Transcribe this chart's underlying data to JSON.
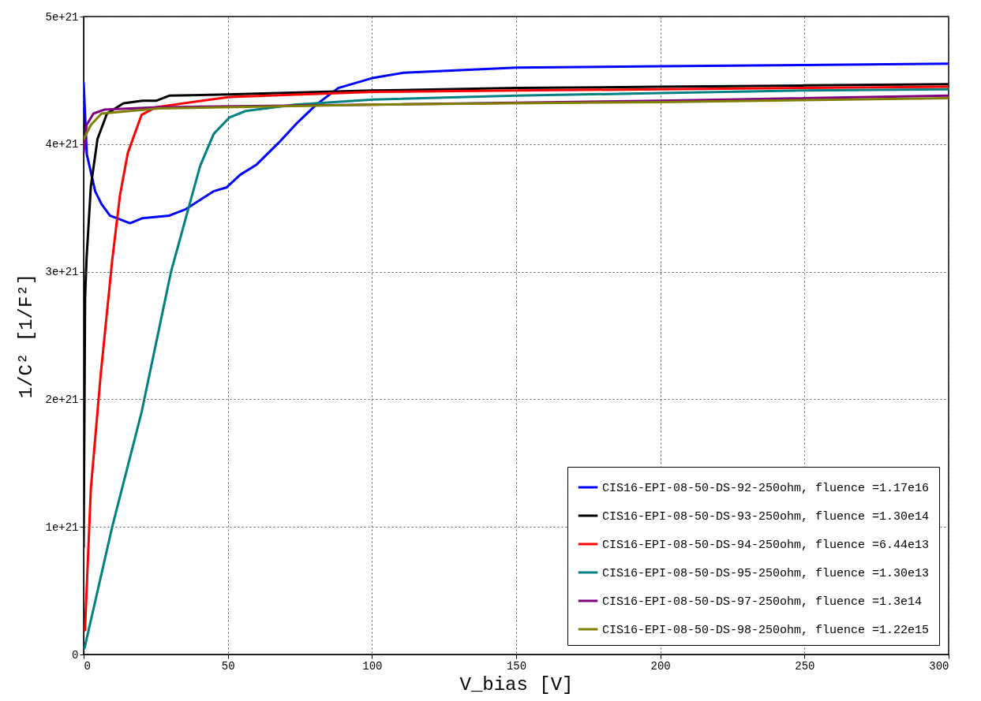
{
  "chart_data": {
    "type": "line",
    "xlabel": "V_bias [V]",
    "ylabel": "1/C² [1/F²]",
    "xlim": [
      0,
      300
    ],
    "xticks": [
      0,
      50,
      100,
      150,
      200,
      250,
      300
    ],
    "ylim": [
      0,
      5e+21
    ],
    "yticks": [
      0,
      {
        "value": 1e+21,
        "label": "1e+21"
      },
      {
        "value": 2e+21,
        "label": "2e+21"
      },
      {
        "value": 3e+21,
        "label": "3e+21"
      },
      {
        "value": 4e+21,
        "label": "4e+21"
      },
      {
        "value": 5e+21,
        "label": "5e+21"
      }
    ],
    "grid": true,
    "legend": "bottom right",
    "line_style": "solid",
    "marker": "none",
    "series": [
      {
        "name": "CIS16-EPI-08-50-DS-92-250ohm, fluence =1.17e16",
        "color": "#0000ff",
        "x": [
          0,
          1.1,
          4,
          6.2,
          9.1,
          16.1,
          20.4,
          29.7,
          35.4,
          45,
          49.5,
          54.3,
          60,
          67.6,
          74.2,
          80.7,
          88.3,
          100.5,
          111,
          150,
          200,
          250,
          300
        ],
        "values": [
          4.48e+21,
          3.92e+21,
          3.63e+21,
          3.53e+21,
          3.44e+21,
          3.38e+21,
          3.42e+21,
          3.44e+21,
          3.49e+21,
          3.63e+21,
          3.66e+21,
          3.76e+21,
          3.84e+21,
          4.01e+21,
          4.17e+21,
          4.31e+21,
          4.44e+21,
          4.52e+21,
          4.56e+21,
          4.6e+21,
          4.61e+21,
          4.62e+21,
          4.63e+21
        ]
      },
      {
        "name": "CIS16-EPI-08-50-DS-93-250ohm, fluence =1.30e14",
        "color": "#000000",
        "x": [
          0,
          0.5,
          1,
          2.5,
          4.8,
          8.1,
          13.8,
          20.4,
          25.1,
          29.7,
          50,
          100,
          150,
          200,
          250,
          300
        ],
        "values": [
          8.4e+20,
          2.8e+21,
          3.1e+21,
          3.67e+21,
          4.04e+21,
          4.24e+21,
          4.32e+21,
          4.34e+21,
          4.34e+21,
          4.38e+21,
          4.39e+21,
          4.42e+21,
          4.44e+21,
          4.45e+21,
          4.46e+21,
          4.47e+21
        ]
      },
      {
        "name": "CIS16-EPI-08-50-DS-94-250ohm, fluence =6.44e13",
        "color": "#ff0000",
        "x": [
          0.45,
          2.5,
          5.9,
          9.9,
          12.6,
          15.3,
          20.1,
          25.1,
          50.6,
          100.5,
          150,
          200,
          250,
          300
        ],
        "values": [
          1.9e+20,
          1.3e+21,
          2.19e+21,
          3.09e+21,
          3.6e+21,
          3.93e+21,
          4.23e+21,
          4.29e+21,
          4.37e+21,
          4.41e+21,
          4.42e+21,
          4.43e+21,
          4.44e+21,
          4.45e+21
        ]
      },
      {
        "name": "CIS16-EPI-08-50-DS-95-250ohm, fluence =1.30e13",
        "color": "#008080",
        "x": [
          0.3,
          9.9,
          20.1,
          30.3,
          40.4,
          45.1,
          50.6,
          56.2,
          73.2,
          100.5,
          150,
          200,
          250,
          300
        ],
        "values": [
          5e+19,
          1e+21,
          1.9e+21,
          3e+21,
          3.83e+21,
          4.08e+21,
          4.21e+21,
          4.26e+21,
          4.31e+21,
          4.35e+21,
          4.38e+21,
          4.4e+21,
          4.42e+21,
          4.43e+21
        ]
      },
      {
        "name": "CIS16-EPI-08-50-DS-97-250ohm, fluence =1.3e14",
        "color": "#800080",
        "x": [
          0,
          1,
          3.4,
          7.1,
          26,
          100,
          200,
          300
        ],
        "values": [
          3.93e+21,
          4.15e+21,
          4.24e+21,
          4.27e+21,
          4.29e+21,
          4.31e+21,
          4.34e+21,
          4.38e+21
        ]
      },
      {
        "name": "CIS16-EPI-08-50-DS-98-250ohm, fluence =1.22e15",
        "color": "#808000",
        "x": [
          0,
          2.5,
          6.2,
          26,
          100,
          200,
          300
        ],
        "values": [
          4.04e+21,
          4.15e+21,
          4.24e+21,
          4.28e+21,
          4.31e+21,
          4.33e+21,
          4.36e+21
        ]
      }
    ]
  }
}
